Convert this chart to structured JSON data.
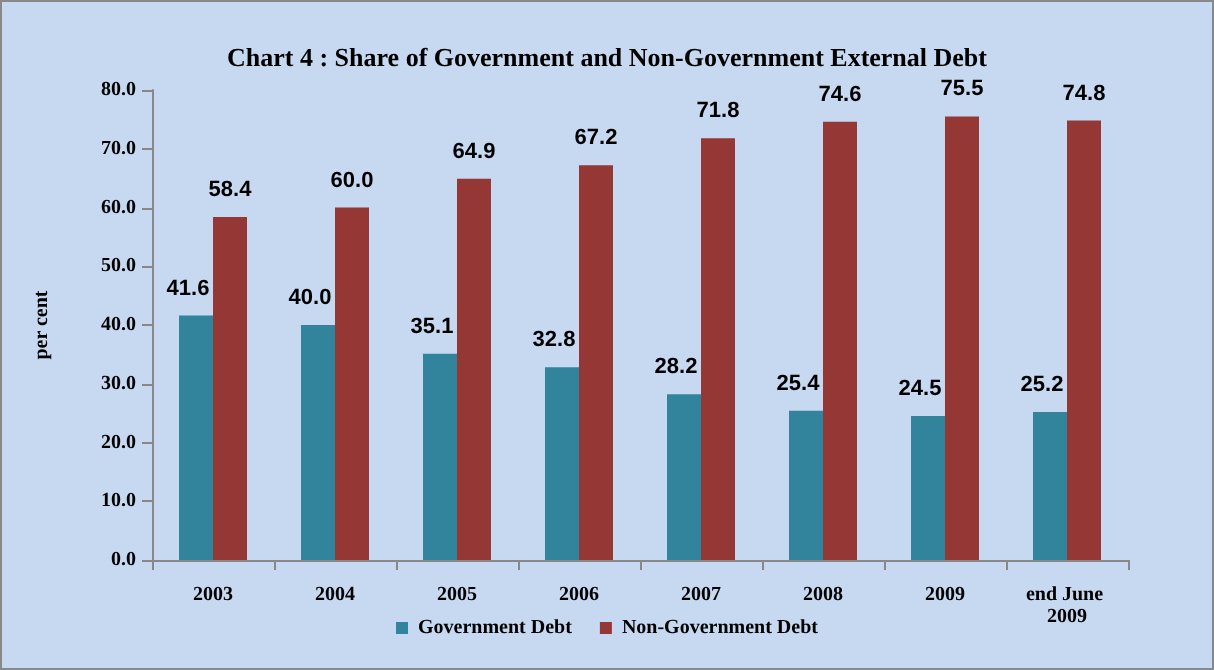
{
  "chart_data": {
    "type": "bar",
    "title": "Chart 4 : Share of Government and Non-Government External Debt",
    "ylabel": "per cent",
    "categories": [
      "2003",
      "2004",
      "2005",
      "2006",
      "2007",
      "2008",
      "2009",
      "end June 2009"
    ],
    "series": [
      {
        "name": "Government Debt",
        "color": "#31849b",
        "values": [
          41.6,
          40.0,
          35.1,
          32.8,
          28.2,
          25.4,
          24.5,
          25.2
        ],
        "value_labels": [
          "41.6",
          "40.0",
          "35.1",
          "32.8",
          "28.2",
          "25.4",
          "24.5",
          "25.2"
        ]
      },
      {
        "name": "Non-Government Debt",
        "color": "#953735",
        "values": [
          58.4,
          60.0,
          64.9,
          67.2,
          71.8,
          74.6,
          75.5,
          74.8
        ],
        "value_labels": [
          "58.4",
          "60.0",
          "64.9",
          "67.2",
          "71.8",
          "74.6",
          "75.5",
          "74.8"
        ]
      }
    ],
    "ylim": [
      0,
      80
    ],
    "yticks": [
      {
        "value": 0,
        "label": "0.0"
      },
      {
        "value": 10,
        "label": "10.0"
      },
      {
        "value": 20,
        "label": "20.0"
      },
      {
        "value": 30,
        "label": "30.0"
      },
      {
        "value": 40,
        "label": "40.0"
      },
      {
        "value": 50,
        "label": "50.0"
      },
      {
        "value": 60,
        "label": "60.0"
      },
      {
        "value": 70,
        "label": "70.0"
      },
      {
        "value": 80,
        "label": "80.0"
      }
    ],
    "grid": false,
    "legend": "bottom"
  }
}
